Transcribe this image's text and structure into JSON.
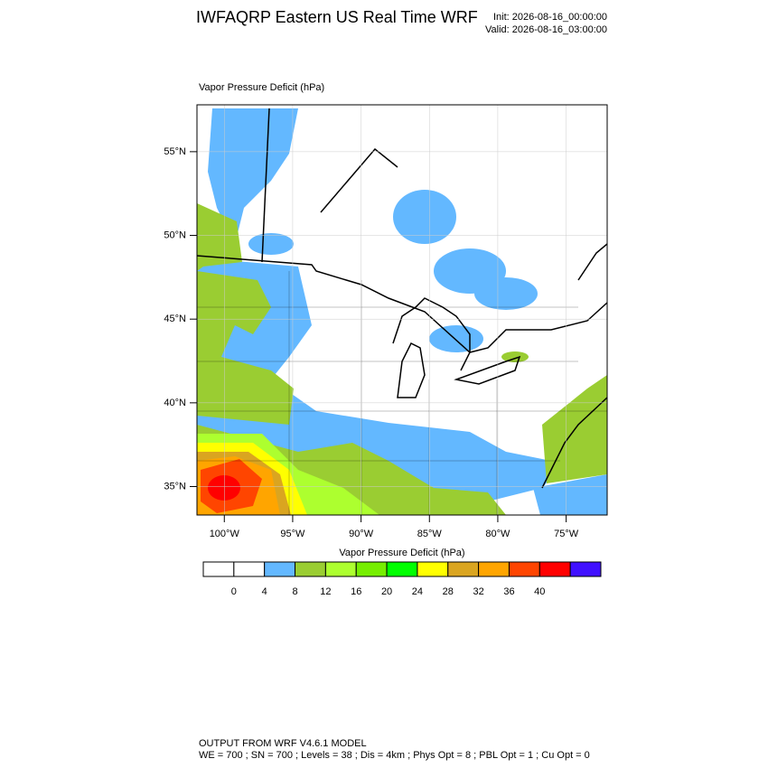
{
  "header": {
    "title": "IWFAQRP Eastern US Real Time WRF",
    "init": "Init: 2026-08-16_00:00:00",
    "valid": "Valid: 2026-08-16_03:00:00"
  },
  "map": {
    "title": "Vapor Pressure Deficit   (hPa)",
    "lon_range": [
      -102,
      -72
    ],
    "lat_range": [
      33.3,
      57.8
    ],
    "lat_ticks": [
      {
        "value": 55,
        "label": "55°N"
      },
      {
        "value": 50,
        "label": "50°N"
      },
      {
        "value": 45,
        "label": "45°N"
      },
      {
        "value": 40,
        "label": "40°N"
      },
      {
        "value": 35,
        "label": "35°N"
      }
    ],
    "lon_ticks": [
      {
        "value": -100,
        "label": "100°W"
      },
      {
        "value": -95,
        "label": "95°W"
      },
      {
        "value": -90,
        "label": "90°W"
      },
      {
        "value": -85,
        "label": "85°W"
      },
      {
        "value": -80,
        "label": "80°W"
      },
      {
        "value": -75,
        "label": "75°W"
      }
    ]
  },
  "colorbar": {
    "title": "Vapor Pressure Deficit  (hPa)",
    "levels": [
      0,
      4,
      8,
      12,
      16,
      20,
      24,
      28,
      32,
      36,
      40
    ],
    "colors": [
      "#ffffff",
      "#ffffff",
      "#63b8ff",
      "#9acd32",
      "#adff2f",
      "#76ee00",
      "#00ff00",
      "#ffff00",
      "#daa520",
      "#ffa500",
      "#ff4500",
      "#ff0000",
      "#4010ff"
    ]
  },
  "footer": {
    "line1": "OUTPUT FROM WRF V4.6.1 MODEL",
    "line2": "WE = 700 ; SN = 700 ; Levels = 38 ; Dis = 4km ; Phys Opt = 8 ; PBL Opt = 1 ; Cu Opt = 0"
  }
}
